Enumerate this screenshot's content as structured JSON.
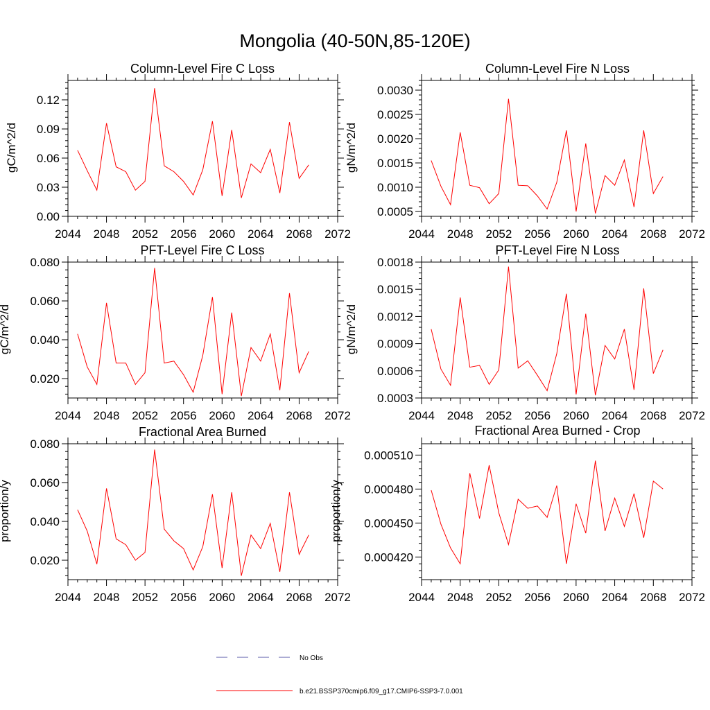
{
  "title": "Mongolia (40-50N,85-120E)",
  "legend": {
    "items": [
      {
        "label": "No Obs",
        "color": "#5a5aa8",
        "style": "dashed"
      },
      {
        "label": "b.e21.BSSP370cmip6.f09_g17.CMIP6-SSP3-7.0.001",
        "color": "#ff0000",
        "style": "solid"
      }
    ]
  },
  "chart_data": [
    {
      "type": "line",
      "title": "Column-Level Fire C Loss",
      "ylabel": "gC/m^2/d",
      "xlim": [
        2044,
        2072
      ],
      "xticks": [
        2044,
        2048,
        2052,
        2056,
        2060,
        2064,
        2068,
        2072
      ],
      "xtick_labels": [
        "2044",
        "2048",
        "2052",
        "2056",
        "2060",
        "2064",
        "2068",
        "2072"
      ],
      "ylim": [
        0,
        0.14
      ],
      "yticks": [
        0,
        0.03,
        0.06,
        0.09,
        0.12
      ],
      "ytick_labels": [
        "0.00",
        "0.03",
        "0.06",
        "0.09",
        "0.12"
      ],
      "color": "#ff0000",
      "x": [
        2045,
        2046,
        2047,
        2048,
        2049,
        2050,
        2051,
        2052,
        2053,
        2054,
        2055,
        2056,
        2057,
        2058,
        2059,
        2060,
        2061,
        2062,
        2063,
        2064,
        2065,
        2066,
        2067,
        2068,
        2069
      ],
      "values": [
        0.068,
        0.047,
        0.027,
        0.096,
        0.051,
        0.046,
        0.027,
        0.036,
        0.132,
        0.052,
        0.046,
        0.036,
        0.022,
        0.048,
        0.098,
        0.021,
        0.089,
        0.019,
        0.054,
        0.045,
        0.069,
        0.024,
        0.097,
        0.039,
        0.053
      ]
    },
    {
      "type": "line",
      "title": "Column-Level Fire N Loss",
      "ylabel": "gN/m^2/d",
      "xlim": [
        2044,
        2072
      ],
      "xticks": [
        2044,
        2048,
        2052,
        2056,
        2060,
        2064,
        2068,
        2072
      ],
      "xtick_labels": [
        "2044",
        "2048",
        "2052",
        "2056",
        "2060",
        "2064",
        "2068",
        "2072"
      ],
      "ylim": [
        0.0004,
        0.0032
      ],
      "yticks": [
        0.0005,
        0.001,
        0.0015,
        0.002,
        0.0025,
        0.003
      ],
      "ytick_labels": [
        "0.0005",
        "0.0010",
        "0.0015",
        "0.0020",
        "0.0025",
        "0.0030"
      ],
      "color": "#ff0000",
      "x": [
        2045,
        2046,
        2047,
        2048,
        2049,
        2050,
        2051,
        2052,
        2053,
        2054,
        2055,
        2056,
        2057,
        2058,
        2059,
        2060,
        2061,
        2062,
        2063,
        2064,
        2065,
        2066,
        2067,
        2068,
        2069
      ],
      "values": [
        0.00155,
        0.00102,
        0.00064,
        0.00213,
        0.00104,
        0.00099,
        0.00066,
        0.00087,
        0.00282,
        0.00104,
        0.00103,
        0.00082,
        0.00055,
        0.0011,
        0.00217,
        0.0005,
        0.0019,
        0.00046,
        0.00124,
        0.00104,
        0.00156,
        0.00059,
        0.00217,
        0.00087,
        0.00122
      ]
    },
    {
      "type": "line",
      "title": "PFT-Level Fire C Loss",
      "ylabel": "gC/m^2/d",
      "xlim": [
        2044,
        2072
      ],
      "xticks": [
        2044,
        2048,
        2052,
        2056,
        2060,
        2064,
        2068,
        2072
      ],
      "xtick_labels": [
        "2044",
        "2048",
        "2052",
        "2056",
        "2060",
        "2064",
        "2068",
        "2072"
      ],
      "ylim": [
        0.01,
        0.08
      ],
      "yticks": [
        0.02,
        0.04,
        0.06,
        0.08
      ],
      "ytick_labels": [
        "0.020",
        "0.040",
        "0.060",
        "0.080"
      ],
      "color": "#ff0000",
      "x": [
        2045,
        2046,
        2047,
        2048,
        2049,
        2050,
        2051,
        2052,
        2053,
        2054,
        2055,
        2056,
        2057,
        2058,
        2059,
        2060,
        2061,
        2062,
        2063,
        2064,
        2065,
        2066,
        2067,
        2068,
        2069
      ],
      "values": [
        0.043,
        0.026,
        0.017,
        0.059,
        0.028,
        0.028,
        0.017,
        0.023,
        0.077,
        0.028,
        0.029,
        0.022,
        0.013,
        0.032,
        0.062,
        0.012,
        0.054,
        0.011,
        0.036,
        0.029,
        0.043,
        0.014,
        0.064,
        0.023,
        0.034
      ]
    },
    {
      "type": "line",
      "title": "PFT-Level Fire N Loss",
      "ylabel": "gN/m^2/d",
      "xlim": [
        2044,
        2072
      ],
      "xticks": [
        2044,
        2048,
        2052,
        2056,
        2060,
        2064,
        2068,
        2072
      ],
      "xtick_labels": [
        "2044",
        "2048",
        "2052",
        "2056",
        "2060",
        "2064",
        "2068",
        "2072"
      ],
      "ylim": [
        0.0003,
        0.0018
      ],
      "yticks": [
        0.0003,
        0.0006,
        0.0009,
        0.0012,
        0.0015,
        0.0018
      ],
      "ytick_labels": [
        "0.0003",
        "0.0006",
        "0.0009",
        "0.0012",
        "0.0015",
        "0.0018"
      ],
      "color": "#ff0000",
      "x": [
        2045,
        2046,
        2047,
        2048,
        2049,
        2050,
        2051,
        2052,
        2053,
        2054,
        2055,
        2056,
        2057,
        2058,
        2059,
        2060,
        2061,
        2062,
        2063,
        2064,
        2065,
        2066,
        2067,
        2068,
        2069
      ],
      "values": [
        0.00106,
        0.00062,
        0.00044,
        0.00141,
        0.00064,
        0.00066,
        0.00045,
        0.00061,
        0.00175,
        0.00063,
        0.00071,
        0.00055,
        0.00038,
        0.00079,
        0.00145,
        0.00034,
        0.00123,
        0.00033,
        0.00088,
        0.00073,
        0.00106,
        0.00039,
        0.00151,
        0.00057,
        0.00083
      ]
    },
    {
      "type": "line",
      "title": "Fractional Area Burned",
      "ylabel": "proportion/y",
      "xlim": [
        2044,
        2072
      ],
      "xticks": [
        2044,
        2048,
        2052,
        2056,
        2060,
        2064,
        2068,
        2072
      ],
      "xtick_labels": [
        "2044",
        "2048",
        "2052",
        "2056",
        "2060",
        "2064",
        "2068",
        "2072"
      ],
      "ylim": [
        0.01,
        0.08
      ],
      "yticks": [
        0.02,
        0.04,
        0.06,
        0.08
      ],
      "ytick_labels": [
        "0.020",
        "0.040",
        "0.060",
        "0.080"
      ],
      "color": "#ff0000",
      "x": [
        2045,
        2046,
        2047,
        2048,
        2049,
        2050,
        2051,
        2052,
        2053,
        2054,
        2055,
        2056,
        2057,
        2058,
        2059,
        2060,
        2061,
        2062,
        2063,
        2064,
        2065,
        2066,
        2067,
        2068,
        2069
      ],
      "values": [
        0.046,
        0.035,
        0.018,
        0.057,
        0.031,
        0.028,
        0.02,
        0.024,
        0.077,
        0.036,
        0.03,
        0.026,
        0.015,
        0.027,
        0.054,
        0.016,
        0.055,
        0.012,
        0.033,
        0.026,
        0.039,
        0.014,
        0.055,
        0.023,
        0.033
      ]
    },
    {
      "type": "line",
      "title": "Fractional Area Burned - Crop",
      "ylabel": "proportion/y",
      "xlim": [
        2044,
        2072
      ],
      "xticks": [
        2044,
        2048,
        2052,
        2056,
        2060,
        2064,
        2068,
        2072
      ],
      "xtick_labels": [
        "2044",
        "2048",
        "2052",
        "2056",
        "2060",
        "2064",
        "2068",
        "2072"
      ],
      "ylim": [
        0.0004,
        0.00052
      ],
      "yticks": [
        0.00042,
        0.00045,
        0.00048,
        0.00051
      ],
      "ytick_labels": [
        "0.000420",
        "0.000450",
        "0.000480",
        "0.000510"
      ],
      "color": "#ff0000",
      "x": [
        2045,
        2046,
        2047,
        2048,
        2049,
        2050,
        2051,
        2052,
        2053,
        2054,
        2055,
        2056,
        2057,
        2058,
        2059,
        2060,
        2061,
        2062,
        2063,
        2064,
        2065,
        2066,
        2067,
        2068,
        2069
      ],
      "values": [
        0.000479,
        0.000449,
        0.000428,
        0.000414,
        0.000494,
        0.000454,
        0.000501,
        0.000459,
        0.000431,
        0.000471,
        0.000463,
        0.000465,
        0.000455,
        0.000483,
        0.000414,
        0.000467,
        0.000441,
        0.000505,
        0.000443,
        0.000472,
        0.000447,
        0.000476,
        0.000437,
        0.000487,
        0.00048
      ]
    }
  ]
}
